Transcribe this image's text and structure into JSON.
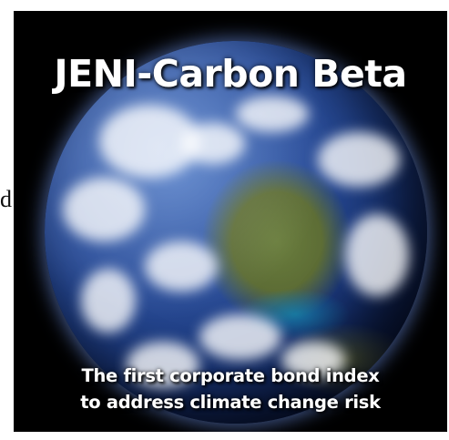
{
  "stray_text": "d",
  "poster": {
    "title": "JENI-Carbon Beta",
    "tagline": [
      "The first corporate bond index",
      "to address climate change risk"
    ]
  },
  "image": {
    "subject": "earth-globe"
  },
  "colors": {
    "background": "#000000",
    "ocean": "#2b4f9c",
    "text": "#ffffff"
  }
}
